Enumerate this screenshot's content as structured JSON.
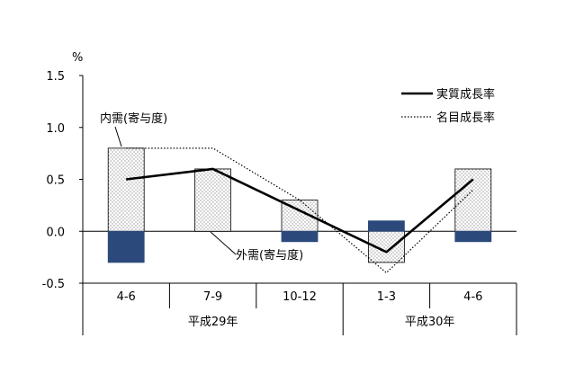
{
  "chart_data": {
    "type": "bar",
    "unit_label": "%",
    "ylim": [
      -0.5,
      1.5
    ],
    "yticks": [
      "1.5",
      "1.0",
      "0.5",
      "0.0",
      "-0.5"
    ],
    "ytick_values": [
      1.5,
      1.0,
      0.5,
      0.0,
      -0.5
    ],
    "categories": [
      "4-6",
      "7-9",
      "10-12",
      "1-3",
      "4-6"
    ],
    "year_groups": [
      {
        "label": "平成29年",
        "span": [
          0,
          3
        ]
      },
      {
        "label": "平成30年",
        "span": [
          3,
          5
        ]
      }
    ],
    "bar_series": [
      {
        "name": "内需(寄与度)",
        "values": [
          0.8,
          0.6,
          0.3,
          -0.3,
          0.6
        ],
        "style": "dotted-fill"
      },
      {
        "name": "外需(寄与度)",
        "values": [
          -0.3,
          0.0,
          -0.1,
          0.1,
          -0.1
        ],
        "style": "navy-fill"
      }
    ],
    "line_series": [
      {
        "name": "実質成長率",
        "values": [
          0.5,
          0.6,
          0.2,
          -0.2,
          0.5
        ],
        "style": "solid"
      },
      {
        "name": "名目成長率",
        "values": [
          0.8,
          0.8,
          0.3,
          -0.4,
          0.4
        ],
        "style": "dotted"
      }
    ],
    "colors": {
      "navy": "#2b4a7b",
      "line": "#000000",
      "zero_line": "#000000"
    },
    "legend_position": "top-right"
  }
}
